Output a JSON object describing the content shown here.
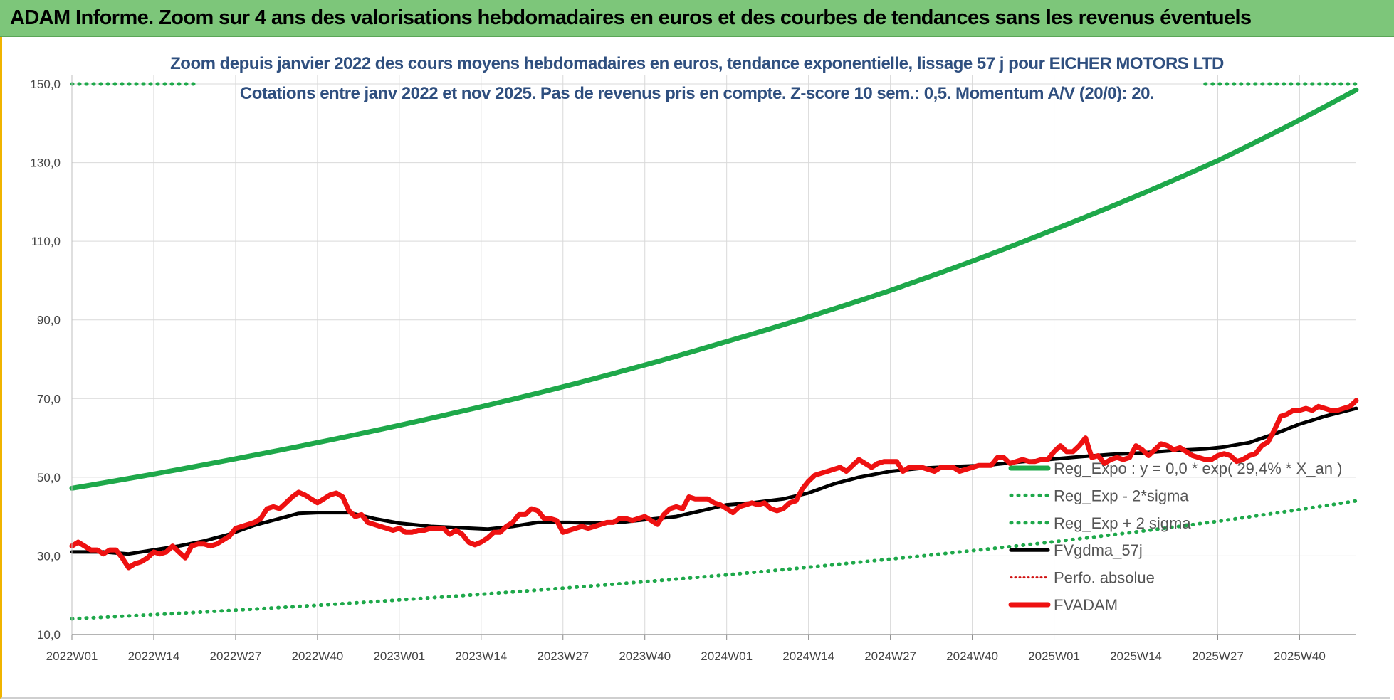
{
  "banner": {
    "title": "ADAM Informe. Zoom sur 4 ans des valorisations hebdomadaires en euros et des courbes de tendances sans les revenus éventuels"
  },
  "colors": {
    "regression": "#1ea84a",
    "fvgdma": "#000000",
    "fvadam": "#ee1111",
    "perfo": "#d01010",
    "grid": "#d9d9d9",
    "banner": "#7dc67a",
    "title_text": "#2f4f7f"
  },
  "chart_data": {
    "type": "line",
    "title_line1": "Zoom depuis janvier 2022 des cours moyens hebdomadaires en euros, tendance exponentielle, lissage 57 j pour EICHER MOTORS LTD",
    "title_line2": "Cotations entre janv 2022 et nov 2025. Pas de revenus pris en compte. Z-score 10 sem.: 0,5. Momentum A/V (20/0): 20.",
    "xlabel": "",
    "ylabel": "",
    "ylim": [
      10,
      150
    ],
    "yticks": [
      "10,0",
      "30,0",
      "50,0",
      "70,0",
      "90,0",
      "110,0",
      "130,0",
      "150,0"
    ],
    "ytick_values": [
      10,
      30,
      50,
      70,
      90,
      110,
      130,
      150
    ],
    "xticks": [
      "2022W01",
      "2022W14",
      "2022W27",
      "2022W40",
      "2023W01",
      "2023W14",
      "2023W27",
      "2023W40",
      "2024W01",
      "2024W14",
      "2024W27",
      "2024W40",
      "2025W01",
      "2025W14",
      "2025W27",
      "2025W40"
    ],
    "xtick_weeks": [
      0,
      13,
      26,
      39,
      52,
      65,
      78,
      91,
      104,
      117,
      130,
      143,
      156,
      169,
      182,
      195
    ],
    "n_weeks": 205,
    "grid": true,
    "legend_position": "right-lower",
    "legend": [
      "Reg_Expo : y = 0,0 * exp( 29,4% *  X_an )",
      "Reg_Exp - 2*sigma",
      "Reg_Exp + 2 sigma",
      "FVgdma_57j",
      "Perfo. absolue",
      "FVADAM"
    ],
    "series": [
      {
        "name": "Reg_Expo : y = 0,0 * exp( 29,4% *  X_an )",
        "style": "solid-thick",
        "points": [
          [
            0,
            47.2
          ],
          [
            26,
            54.7
          ],
          [
            52,
            63.2
          ],
          [
            78,
            73.0
          ],
          [
            104,
            84.5
          ],
          [
            130,
            97.5
          ],
          [
            156,
            113.0
          ],
          [
            182,
            130.5
          ],
          [
            204,
            148.5
          ]
        ]
      },
      {
        "name": "Reg_Exp - 2*sigma",
        "style": "dotted",
        "points": [
          [
            0,
            14.0
          ],
          [
            26,
            16.2
          ],
          [
            52,
            18.8
          ],
          [
            78,
            21.8
          ],
          [
            104,
            25.2
          ],
          [
            130,
            29.2
          ],
          [
            156,
            33.6
          ],
          [
            182,
            38.8
          ],
          [
            204,
            44.0
          ]
        ]
      },
      {
        "name": "Reg_Exp + 2 sigma",
        "style": "dotted",
        "points": [
          [
            0,
            150.0
          ],
          [
            20,
            150.0
          ]
        ]
      },
      {
        "name": "Reg_Exp + 2 sigma (fin)",
        "style": "dotted",
        "points": [
          [
            180,
            150.0
          ],
          [
            204,
            150.0
          ]
        ]
      },
      {
        "name": "FVgdma_57j",
        "style": "solid",
        "points": [
          [
            0,
            31.0
          ],
          [
            5,
            31.0
          ],
          [
            9,
            30.5
          ],
          [
            13,
            31.5
          ],
          [
            17,
            32.5
          ],
          [
            21,
            33.8
          ],
          [
            25,
            35.5
          ],
          [
            29,
            37.8
          ],
          [
            33,
            39.5
          ],
          [
            36,
            40.8
          ],
          [
            39,
            41.0
          ],
          [
            44,
            41.0
          ],
          [
            48,
            39.5
          ],
          [
            52,
            38.3
          ],
          [
            57,
            37.5
          ],
          [
            61,
            37.2
          ],
          [
            66,
            36.8
          ],
          [
            70,
            37.5
          ],
          [
            74,
            38.5
          ],
          [
            79,
            38.5
          ],
          [
            83,
            38.3
          ],
          [
            87,
            38.5
          ],
          [
            91,
            39.2
          ],
          [
            96,
            40.0
          ],
          [
            100,
            41.5
          ],
          [
            104,
            43.0
          ],
          [
            108,
            43.5
          ],
          [
            113,
            44.5
          ],
          [
            117,
            46.0
          ],
          [
            121,
            48.3
          ],
          [
            125,
            50.0
          ],
          [
            130,
            51.5
          ],
          [
            135,
            52.3
          ],
          [
            140,
            52.7
          ],
          [
            145,
            53.0
          ],
          [
            150,
            53.8
          ],
          [
            155,
            54.5
          ],
          [
            160,
            55.2
          ],
          [
            165,
            55.8
          ],
          [
            170,
            56.2
          ],
          [
            175,
            56.8
          ],
          [
            180,
            57.2
          ],
          [
            183,
            57.7
          ],
          [
            187,
            58.8
          ],
          [
            191,
            61.0
          ],
          [
            195,
            63.5
          ],
          [
            199,
            65.5
          ],
          [
            204,
            67.5
          ]
        ]
      },
      {
        "name": "FVADAM",
        "style": "solid-thick",
        "points": [
          [
            0,
            32.5
          ],
          [
            1,
            33.5
          ],
          [
            2,
            32.5
          ],
          [
            3,
            31.5
          ],
          [
            4,
            31.5
          ],
          [
            5,
            30.5
          ],
          [
            6,
            31.5
          ],
          [
            7,
            31.5
          ],
          [
            8,
            29.5
          ],
          [
            9,
            27.0
          ],
          [
            10,
            28.0
          ],
          [
            11,
            28.5
          ],
          [
            12,
            29.5
          ],
          [
            13,
            31.0
          ],
          [
            14,
            30.5
          ],
          [
            15,
            31.0
          ],
          [
            16,
            32.5
          ],
          [
            17,
            31.0
          ],
          [
            18,
            29.5
          ],
          [
            19,
            32.5
          ],
          [
            20,
            33.0
          ],
          [
            21,
            33.0
          ],
          [
            22,
            32.5
          ],
          [
            23,
            33.0
          ],
          [
            24,
            34.0
          ],
          [
            25,
            35.0
          ],
          [
            26,
            37.0
          ],
          [
            27,
            37.5
          ],
          [
            28,
            38.0
          ],
          [
            29,
            38.5
          ],
          [
            30,
            39.5
          ],
          [
            31,
            42.0
          ],
          [
            32,
            42.5
          ],
          [
            33,
            42.0
          ],
          [
            34,
            43.5
          ],
          [
            35,
            45.0
          ],
          [
            36,
            46.2
          ],
          [
            37,
            45.5
          ],
          [
            38,
            44.5
          ],
          [
            39,
            43.5
          ],
          [
            40,
            44.5
          ],
          [
            41,
            45.5
          ],
          [
            42,
            46.0
          ],
          [
            43,
            45.0
          ],
          [
            44,
            41.5
          ],
          [
            45,
            40.0
          ],
          [
            46,
            40.5
          ],
          [
            47,
            38.5
          ],
          [
            48,
            38.0
          ],
          [
            49,
            37.5
          ],
          [
            50,
            37.0
          ],
          [
            51,
            36.5
          ],
          [
            52,
            37.0
          ],
          [
            53,
            36.0
          ],
          [
            54,
            36.0
          ],
          [
            55,
            36.5
          ],
          [
            56,
            36.5
          ],
          [
            57,
            37.0
          ],
          [
            58,
            37.0
          ],
          [
            59,
            37.0
          ],
          [
            60,
            35.5
          ],
          [
            61,
            36.5
          ],
          [
            62,
            35.5
          ],
          [
            63,
            33.5
          ],
          [
            64,
            32.8
          ],
          [
            65,
            33.5
          ],
          [
            66,
            34.5
          ],
          [
            67,
            36.0
          ],
          [
            68,
            36.0
          ],
          [
            69,
            37.5
          ],
          [
            70,
            38.5
          ],
          [
            71,
            40.5
          ],
          [
            72,
            40.5
          ],
          [
            73,
            42.0
          ],
          [
            74,
            41.5
          ],
          [
            75,
            39.5
          ],
          [
            76,
            39.5
          ],
          [
            77,
            39.0
          ],
          [
            78,
            36.0
          ],
          [
            79,
            36.5
          ],
          [
            80,
            37.0
          ],
          [
            81,
            37.5
          ],
          [
            82,
            37.0
          ],
          [
            83,
            37.5
          ],
          [
            84,
            38.0
          ],
          [
            85,
            38.5
          ],
          [
            86,
            38.5
          ],
          [
            87,
            39.5
          ],
          [
            88,
            39.5
          ],
          [
            89,
            39.0
          ],
          [
            90,
            39.5
          ],
          [
            91,
            40.0
          ],
          [
            92,
            39.0
          ],
          [
            93,
            38.0
          ],
          [
            94,
            40.5
          ],
          [
            95,
            42.0
          ],
          [
            96,
            42.5
          ],
          [
            97,
            42.0
          ],
          [
            98,
            45.0
          ],
          [
            99,
            44.5
          ],
          [
            100,
            44.5
          ],
          [
            101,
            44.5
          ],
          [
            102,
            43.5
          ],
          [
            103,
            43.0
          ],
          [
            104,
            42.0
          ],
          [
            105,
            41.0
          ],
          [
            106,
            42.5
          ],
          [
            107,
            43.0
          ],
          [
            108,
            43.5
          ],
          [
            109,
            43.0
          ],
          [
            110,
            43.5
          ],
          [
            111,
            42.0
          ],
          [
            112,
            41.5
          ],
          [
            113,
            42.0
          ],
          [
            114,
            43.5
          ],
          [
            115,
            44.0
          ],
          [
            116,
            47.0
          ],
          [
            117,
            49.0
          ],
          [
            118,
            50.5
          ],
          [
            119,
            51.0
          ],
          [
            120,
            51.5
          ],
          [
            121,
            52.0
          ],
          [
            122,
            52.5
          ],
          [
            123,
            51.5
          ],
          [
            124,
            53.0
          ],
          [
            125,
            54.5
          ],
          [
            126,
            53.5
          ],
          [
            127,
            52.5
          ],
          [
            128,
            53.5
          ],
          [
            129,
            54.0
          ],
          [
            130,
            54.0
          ],
          [
            131,
            54.0
          ],
          [
            132,
            51.5
          ],
          [
            133,
            52.5
          ],
          [
            134,
            52.5
          ],
          [
            135,
            52.5
          ],
          [
            136,
            52.0
          ],
          [
            137,
            51.5
          ],
          [
            138,
            52.5
          ],
          [
            139,
            52.5
          ],
          [
            140,
            52.5
          ],
          [
            141,
            51.5
          ],
          [
            142,
            52.0
          ],
          [
            143,
            52.5
          ],
          [
            144,
            53.0
          ],
          [
            145,
            53.0
          ],
          [
            146,
            53.0
          ],
          [
            147,
            55.0
          ],
          [
            148,
            55.0
          ],
          [
            149,
            53.5
          ],
          [
            150,
            54.0
          ],
          [
            151,
            54.5
          ],
          [
            152,
            54.0
          ],
          [
            153,
            54.0
          ],
          [
            154,
            54.5
          ],
          [
            155,
            54.5
          ],
          [
            156,
            56.5
          ],
          [
            157,
            58.0
          ],
          [
            158,
            56.5
          ],
          [
            159,
            56.5
          ],
          [
            160,
            58.0
          ],
          [
            161,
            60.0
          ],
          [
            162,
            55.0
          ],
          [
            163,
            55.5
          ],
          [
            164,
            53.5
          ],
          [
            165,
            54.5
          ],
          [
            166,
            55.0
          ],
          [
            167,
            54.5
          ],
          [
            168,
            55.0
          ],
          [
            169,
            58.0
          ],
          [
            170,
            57.0
          ],
          [
            171,
            55.5
          ],
          [
            172,
            57.0
          ],
          [
            173,
            58.5
          ],
          [
            174,
            58.0
          ],
          [
            175,
            57.0
          ],
          [
            176,
            57.5
          ],
          [
            177,
            56.5
          ],
          [
            178,
            55.5
          ],
          [
            179,
            55.0
          ],
          [
            180,
            54.5
          ],
          [
            181,
            54.5
          ],
          [
            182,
            55.5
          ],
          [
            183,
            56.0
          ],
          [
            184,
            55.5
          ],
          [
            185,
            54.0
          ],
          [
            186,
            54.5
          ],
          [
            187,
            55.5
          ],
          [
            188,
            56.0
          ],
          [
            189,
            58.0
          ],
          [
            190,
            59.0
          ],
          [
            191,
            62.0
          ],
          [
            192,
            65.5
          ],
          [
            193,
            66.0
          ],
          [
            194,
            67.0
          ],
          [
            195,
            67.0
          ],
          [
            196,
            67.5
          ],
          [
            197,
            67.0
          ],
          [
            198,
            68.0
          ],
          [
            199,
            67.5
          ],
          [
            200,
            67.0
          ],
          [
            201,
            67.0
          ],
          [
            202,
            67.5
          ],
          [
            203,
            68.0
          ],
          [
            204,
            69.5
          ]
        ]
      }
    ]
  }
}
